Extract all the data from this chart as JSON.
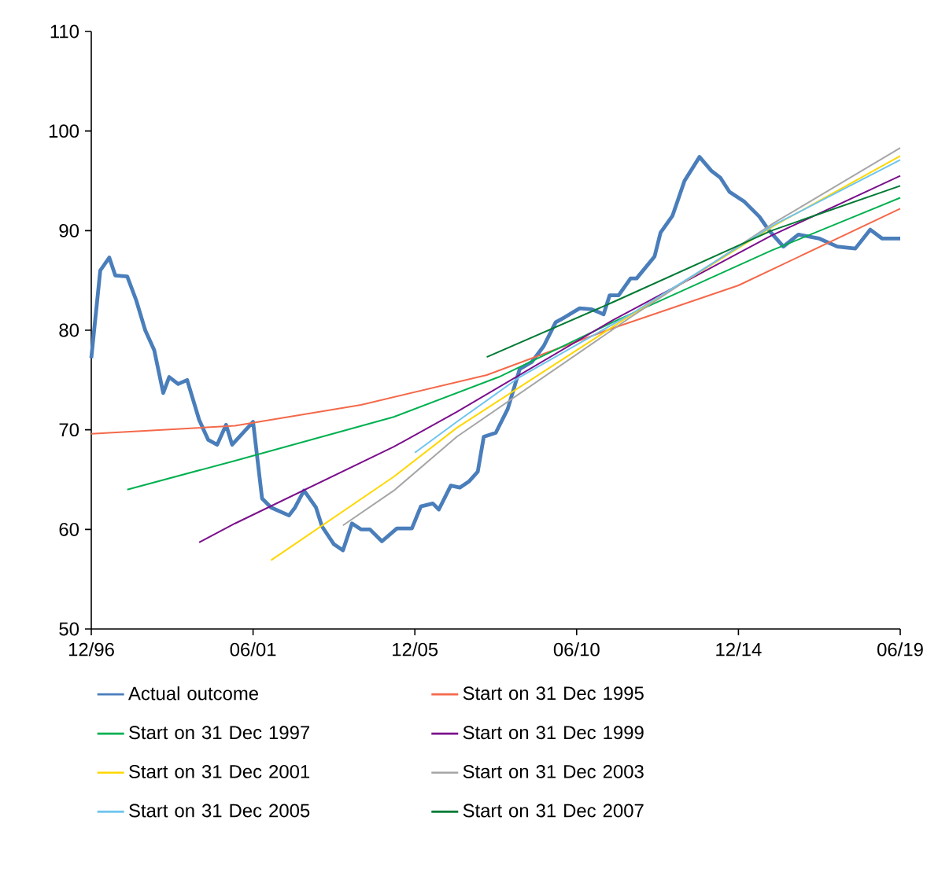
{
  "chart_data": {
    "type": "line",
    "xlim": [
      "1996-12",
      "2019-06"
    ],
    "ylim": [
      50,
      110
    ],
    "xticks": [
      {
        "value": "1996-12",
        "label": "12/96"
      },
      {
        "value": "2001-06",
        "label": "06/01"
      },
      {
        "value": "2005-12",
        "label": "12/05"
      },
      {
        "value": "2010-06",
        "label": "06/10"
      },
      {
        "value": "2014-12",
        "label": "12/14"
      },
      {
        "value": "2019-06",
        "label": "06/19"
      }
    ],
    "yticks": [
      50,
      60,
      70,
      80,
      90,
      100,
      110
    ],
    "legend": "bottom",
    "series": [
      {
        "name": "Actual outcome",
        "color": "#4a7ebb",
        "x": [
          "1996-12",
          "1997-03",
          "1997-06",
          "1997-08",
          "1997-12",
          "1998-03",
          "1998-06",
          "1998-09",
          "1998-12",
          "1999-02",
          "1999-05",
          "1999-08",
          "1999-12",
          "2000-03",
          "2000-06",
          "2000-09",
          "2000-11",
          "2001-06",
          "2001-09",
          "2001-12",
          "2002-06",
          "2002-08",
          "2002-11",
          "2003-03",
          "2003-05",
          "2003-09",
          "2003-12",
          "2004-03",
          "2004-06",
          "2004-09",
          "2005-01",
          "2005-06",
          "2005-11",
          "2006-02",
          "2006-06",
          "2006-08",
          "2006-12",
          "2007-03",
          "2007-06",
          "2007-09",
          "2007-11",
          "2008-03",
          "2008-07",
          "2008-11",
          "2009-03",
          "2009-07",
          "2009-11",
          "2010-02",
          "2010-07",
          "2010-11",
          "2011-03",
          "2011-05",
          "2011-08",
          "2011-12",
          "2012-02",
          "2012-08",
          "2012-10",
          "2013-02",
          "2013-06",
          "2013-11",
          "2014-03",
          "2014-06",
          "2014-09",
          "2015-02",
          "2015-07",
          "2015-10",
          "2016-03",
          "2016-08",
          "2017-03",
          "2017-09",
          "2018-03",
          "2018-08",
          "2018-12",
          "2019-06"
        ],
        "values": [
          77.2,
          86.0,
          87.3,
          85.5,
          85.4,
          83.0,
          80.0,
          78.0,
          73.7,
          75.3,
          74.6,
          75.0,
          71.0,
          69.0,
          68.5,
          70.5,
          68.5,
          70.8,
          63.1,
          62.2,
          61.4,
          62.2,
          63.9,
          62.2,
          60.3,
          58.5,
          57.9,
          60.6,
          60.0,
          60.0,
          58.8,
          60.1,
          60.1,
          62.3,
          62.6,
          62.0,
          64.4,
          64.2,
          64.8,
          65.8,
          69.3,
          69.7,
          72.1,
          76.1,
          76.8,
          78.4,
          80.8,
          81.3,
          82.2,
          82.1,
          81.6,
          83.5,
          83.5,
          85.2,
          85.2,
          87.4,
          89.8,
          91.5,
          95.0,
          97.4,
          96.0,
          95.3,
          93.9,
          92.9,
          91.4,
          90.1,
          88.4,
          89.6,
          89.2,
          88.4,
          88.2,
          90.1,
          89.2,
          89.2
        ]
      },
      {
        "name": "Start on 31 Dec 1995",
        "color": "#f4694a",
        "x": [
          "1996-12",
          "2000-12",
          "2004-06",
          "2007-12",
          "2011-06",
          "2014-12",
          "2019-06"
        ],
        "values": [
          69.6,
          70.4,
          72.5,
          75.5,
          80.2,
          84.5,
          92.2
        ]
      },
      {
        "name": "Start on 31 Dec 1997",
        "color": "#00b050",
        "x": [
          "1997-12",
          "2000-12",
          "2005-05",
          "2008-04",
          "2011-06",
          "2015-11",
          "2019-06"
        ],
        "values": [
          64.0,
          66.9,
          71.3,
          75.3,
          80.8,
          88.0,
          93.3
        ]
      },
      {
        "name": "Start on 31 Dec 1999",
        "color": "#7b0f8c",
        "x": [
          "1999-12",
          "2000-12",
          "2005-05",
          "2007-02",
          "2011-06",
          "2015-11",
          "2019-06"
        ],
        "values": [
          58.7,
          60.6,
          68.3,
          71.8,
          81.0,
          89.5,
          95.5
        ]
      },
      {
        "name": "Start on 31 Dec 2001",
        "color": "#ffd700",
        "x": [
          "2001-12",
          "2005-05",
          "2007-02",
          "2011-12",
          "2015-12",
          "2019-06"
        ],
        "values": [
          56.9,
          65.3,
          70.2,
          81.5,
          90.5,
          97.5
        ]
      },
      {
        "name": "Start on 31 Dec 2003",
        "color": "#a6a6a6",
        "x": [
          "2003-12",
          "2005-05",
          "2007-02",
          "2011-12",
          "2015-12",
          "2019-06"
        ],
        "values": [
          60.4,
          63.9,
          69.3,
          81.3,
          90.8,
          98.3
        ]
      },
      {
        "name": "Start on 31 Dec 2005",
        "color": "#6fc4ee",
        "x": [
          "2005-12",
          "2007-02",
          "2008-11",
          "2011-12",
          "2015-12",
          "2019-06"
        ],
        "values": [
          67.7,
          70.8,
          75.3,
          81.6,
          90.6,
          97.1
        ]
      },
      {
        "name": "Start on 31 Dec 2007",
        "color": "#007a33",
        "x": [
          "2007-12",
          "2011-06",
          "2015-11",
          "2019-06"
        ],
        "values": [
          77.3,
          82.8,
          90.0,
          94.5
        ]
      }
    ]
  }
}
